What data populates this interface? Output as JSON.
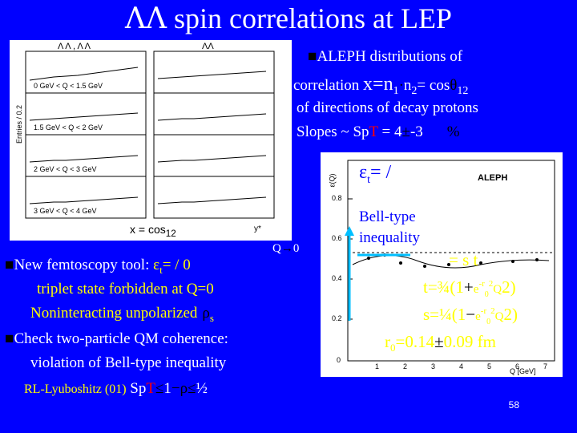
{
  "title": {
    "symbol": "ΛΛ",
    "text": " spin correlations at LEP"
  },
  "left_figure": {
    "top_labels": [
      "Λ Λ , Λ Λ",
      "ΛΛ"
    ],
    "y_axis_label": "Entries / 0.2",
    "panel_labels": [
      "0 GeV < Q < 1.5 GeV",
      "1.5 GeV < Q < 2 GeV",
      "2 GeV < Q < 3 GeV",
      "3 GeV < Q < 4 GeV"
    ],
    "x_caption": "x = cos",
    "x_caption_sub": "12",
    "axis_letter": "y*"
  },
  "right_figure": {
    "brand": "ALEPH",
    "y_axis_label": "ε(Q)",
    "y_ticks": [
      "0.8",
      "0.6",
      "0.4",
      "0.2",
      "0"
    ],
    "x_ticks": [
      "1",
      "2",
      "3",
      "4",
      "5",
      "6",
      "7"
    ],
    "x_label": "Q [GeV]",
    "formula": "= /",
    "formula_sub": "t",
    "bell_label_1": "Bell-type",
    "bell_label_2": "inequality"
  },
  "bullets": {
    "aleph_line1": "ALEPH distributions of",
    "aleph_line2_prefix": "correlation ",
    "aleph_line2_x": "x=n",
    "aleph_line2_mid": "n",
    "aleph_line2_eq": "= cos",
    "aleph_line2_sub": "12",
    "aleph_line3": "of directions of decay protons",
    "slopes_prefix": "Slopes ~ Sp",
    "slopes_T": "T",
    "slopes_suffix": " = 4",
    "slopes_tail": "-3",
    "q_label": "Q",
    "q_arrow": "0",
    "femto_prefix": "New femtoscopy tool: ",
    "femto_formula": "=  /  0",
    "triplet_text": "triplet state",
    "forbidden_text": " forbidden at Q=0",
    "nonint_text": "Noninteracting unpolarized",
    "nonint_sub": "s",
    "check_text": "Check two-particle QM coherence:",
    "violation_text": "violation of Bell-type inequality",
    "rl_text": "RL-Lyuboshitz (01)",
    "rl_sp": " Sp",
    "rl_T": "T",
    "rl_tail": "1",
    "rl_half": "½"
  },
  "right_text": {
    "line1": "=  s  t",
    "line2_prefix": "t=¾(1",
    "line2_exp": "e",
    "line2_exp_sup": "-r",
    "line2_r_sub": "0",
    "line2_sq": "2",
    "line2_q": "Q",
    "line2_close": "2)",
    "line3_prefix": "s=¼(1",
    "line4": "r",
    "line4_sub": "0",
    "line4_tail": "=0.14",
    "line4_err": "0.09 fm"
  },
  "page_number": "58",
  "colors": {
    "background": "#0000ff",
    "accent_yellow": "#ffff00",
    "accent_red": "#ff0000",
    "white": "#ffffff"
  }
}
